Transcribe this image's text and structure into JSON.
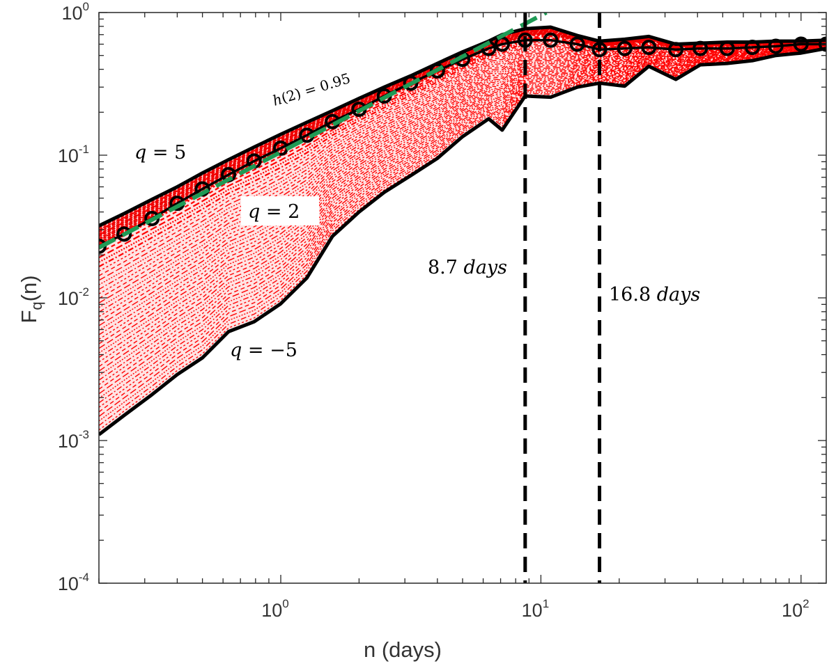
{
  "chart_data": {
    "type": "line",
    "title": "",
    "xlabel": "n (days)",
    "ylabel_main": "F",
    "ylabel_sub": "q",
    "ylabel_tail": "(n)",
    "x_scale": "log",
    "y_scale": "log",
    "xlim": [
      0.2,
      125
    ],
    "ylim": [
      0.0001,
      1
    ],
    "x_ticks": [
      {
        "value": 1,
        "base": "10",
        "exp": "0"
      },
      {
        "value": 10,
        "base": "10",
        "exp": "1"
      },
      {
        "value": 100,
        "base": "10",
        "exp": "2"
      }
    ],
    "y_ticks": [
      {
        "value": 0.0001,
        "base": "10",
        "exp": "-4"
      },
      {
        "value": 0.001,
        "base": "10",
        "exp": "-3"
      },
      {
        "value": 0.01,
        "base": "10",
        "exp": "-2"
      },
      {
        "value": 0.1,
        "base": "10",
        "exp": "-1"
      },
      {
        "value": 1,
        "base": "10",
        "exp": "0"
      }
    ],
    "x": [
      0.2,
      0.25,
      0.32,
      0.4,
      0.5,
      0.63,
      0.79,
      1.0,
      1.26,
      1.58,
      2.0,
      2.5,
      3.16,
      4.0,
      5.0,
      6.3,
      7.1,
      8.7,
      10.9,
      13.8,
      16.8,
      21.0,
      26.0,
      33.0,
      41.0,
      52.0,
      65.0,
      80.0,
      100.0,
      125.0
    ],
    "series": [
      {
        "name": "q = 5",
        "color": "#000000",
        "style": "solid",
        "values": [
          0.032,
          0.039,
          0.049,
          0.06,
          0.075,
          0.093,
          0.114,
          0.14,
          0.17,
          0.205,
          0.25,
          0.3,
          0.36,
          0.44,
          0.53,
          0.63,
          0.7,
          0.77,
          0.79,
          0.69,
          0.63,
          0.65,
          0.68,
          0.6,
          0.61,
          0.62,
          0.62,
          0.63,
          0.63,
          0.64
        ]
      },
      {
        "name": "q = 2",
        "color": "#000000",
        "style": "solid-circles",
        "values": [
          0.023,
          0.028,
          0.036,
          0.046,
          0.058,
          0.073,
          0.091,
          0.112,
          0.138,
          0.172,
          0.21,
          0.26,
          0.32,
          0.39,
          0.47,
          0.56,
          0.6,
          0.64,
          0.64,
          0.6,
          0.55,
          0.56,
          0.57,
          0.55,
          0.56,
          0.56,
          0.57,
          0.58,
          0.6,
          0.6
        ]
      },
      {
        "name": "q = -5",
        "color": "#000000",
        "style": "solid",
        "values": [
          0.0011,
          0.0015,
          0.0021,
          0.0029,
          0.0038,
          0.0058,
          0.0068,
          0.0091,
          0.0138,
          0.027,
          0.04,
          0.055,
          0.072,
          0.095,
          0.135,
          0.18,
          0.15,
          0.26,
          0.255,
          0.3,
          0.32,
          0.305,
          0.42,
          0.34,
          0.43,
          0.44,
          0.46,
          0.5,
          0.52,
          0.56
        ]
      }
    ],
    "fit_line": {
      "label": "h(2) = 0.95",
      "color": "#1f9a55",
      "style": "dashed",
      "x": [
        0.2,
        10.5
      ],
      "y": [
        0.0225,
        1.0
      ]
    },
    "shaded_band": {
      "color": "#ff0000",
      "description_series": "q from -5 to 5"
    },
    "vlines": [
      {
        "x": 8.7,
        "label": "8.7 days",
        "style": "dashed",
        "color": "#000000"
      },
      {
        "x": 16.8,
        "label": "16.8 days",
        "style": "dashed",
        "color": "#000000"
      }
    ],
    "annotations": [
      {
        "text": "q = 5",
        "near": "upper-left"
      },
      {
        "text": "q = 2",
        "near": "center-left"
      },
      {
        "text": "q = −5",
        "near": "lower-left"
      },
      {
        "text": "h(2) = 0.95",
        "near": "along fit line"
      }
    ]
  },
  "labels": {
    "q5": "𝑞 = 5",
    "q2": "𝑞 = 2",
    "qm5": "𝑞 = −5",
    "h2": "ℎ(2) = 0.95",
    "vline1_num": "8.7",
    "vline1_unit": "days",
    "vline2_num": "16.8",
    "vline2_unit": "days"
  }
}
